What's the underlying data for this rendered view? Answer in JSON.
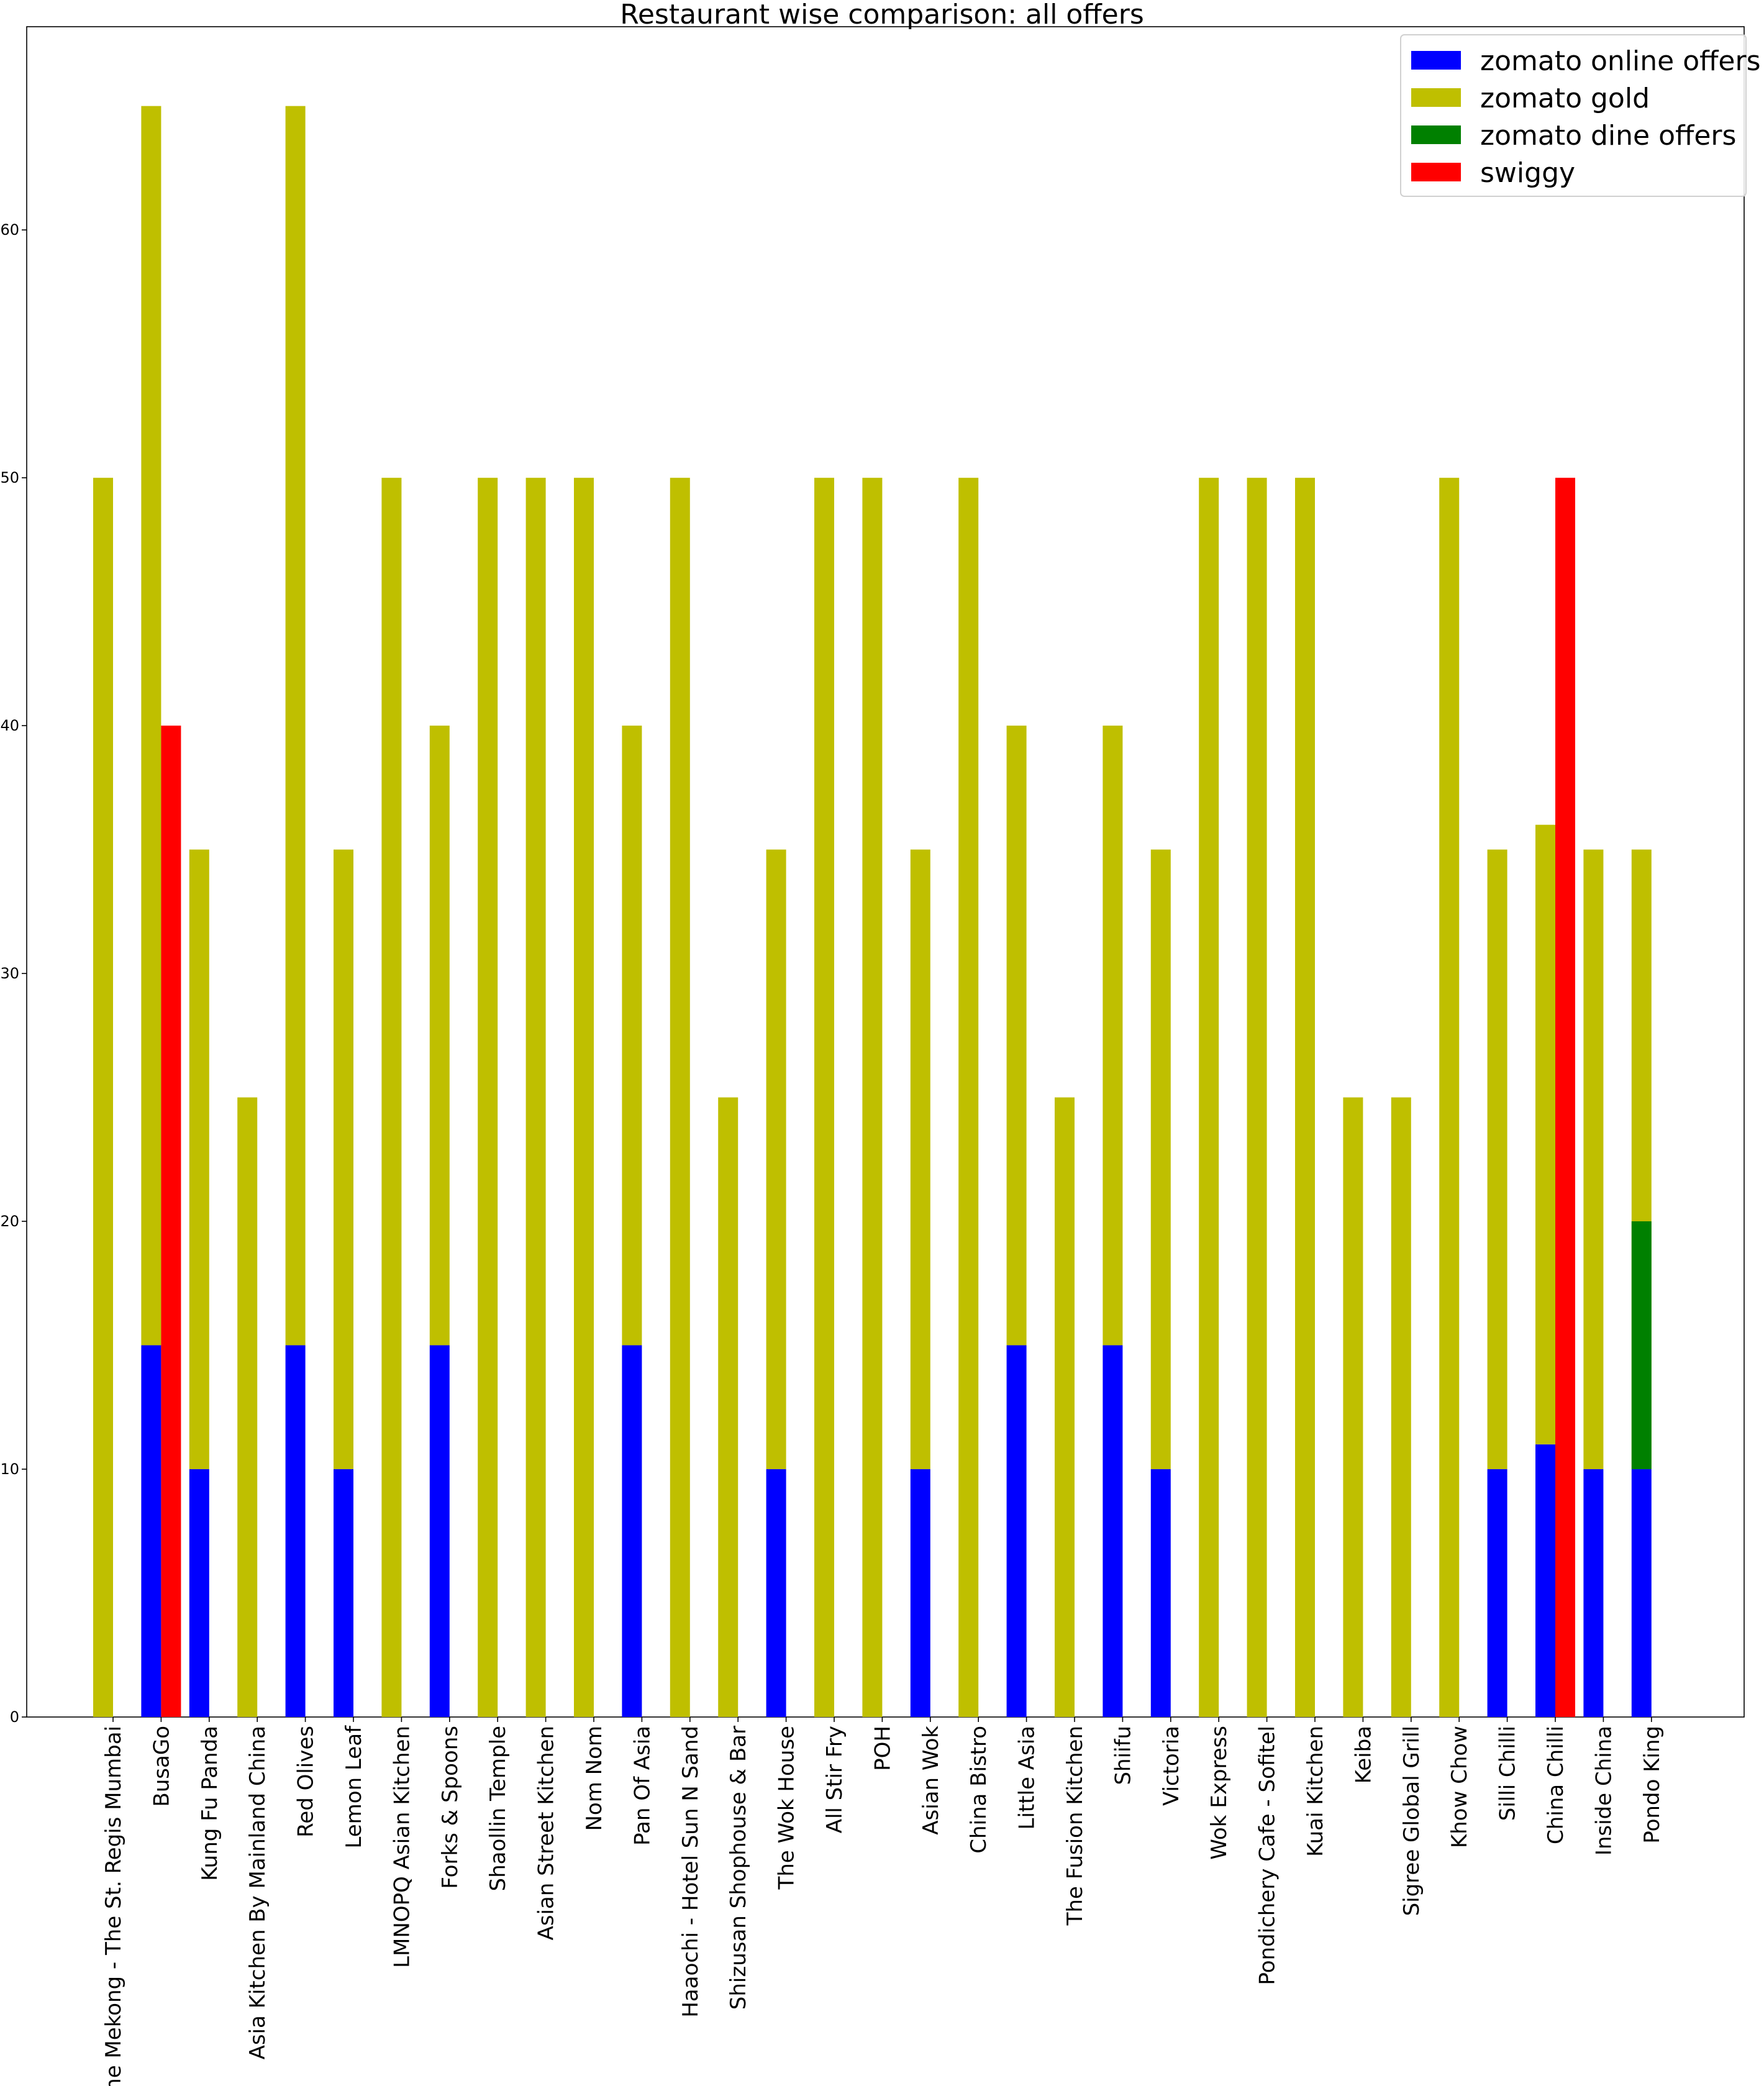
{
  "chart_data": {
    "type": "bar",
    "title": "Restaurant wise comparison: all offers",
    "xlabel": "",
    "ylabel": "",
    "ylim": [
      0,
      68.2
    ],
    "yticks": [
      0,
      10,
      20,
      30,
      40,
      50,
      60
    ],
    "grid": false,
    "legend_position": "top-right",
    "categories": [
      "By the Mekong - The St. Regis Mumbai",
      "BusaGo",
      "Kung Fu Panda",
      "Asia Kitchen By Mainland China",
      "Red Olives",
      "Lemon Leaf",
      "LMNOPQ Asian Kitchen",
      "Forks & Spoons",
      "Shaollin Temple",
      "Asian Street Kitchen",
      "Nom Nom",
      "Pan Of Asia",
      "Haaochi - Hotel Sun N Sand",
      "Shizusan Shophouse & Bar",
      "The Wok House",
      "All Stir Fry",
      "POH",
      "Asian Wok",
      "China Bistro",
      "Little Asia",
      "The Fusion Kitchen",
      "Shiifu",
      "Victoria",
      "Wok Express",
      "Pondichery Cafe - Sofitel",
      "Kuai Kitchen",
      "Keiba",
      "Sigree Global Grill",
      "Khow Chow",
      "Silli Chilli",
      "China Chilli",
      "Inside China",
      "Pondo King"
    ],
    "series": [
      {
        "name": "zomato online offers",
        "color": "#0000ff",
        "values": [
          0,
          15,
          10,
          0,
          15,
          10,
          0,
          15,
          0,
          0,
          0,
          15,
          0,
          0,
          10,
          0,
          0,
          10,
          0,
          15,
          0,
          15,
          10,
          0,
          0,
          0,
          0,
          0,
          0,
          10,
          11,
          10,
          10
        ]
      },
      {
        "name": "zomato gold",
        "color": "#bfbf00",
        "values": [
          50,
          50,
          25,
          25,
          50,
          25,
          50,
          25,
          50,
          50,
          50,
          25,
          50,
          25,
          25,
          50,
          50,
          25,
          50,
          25,
          25,
          25,
          25,
          50,
          50,
          50,
          25,
          25,
          50,
          25,
          25,
          25,
          25
        ]
      },
      {
        "name": "zomato dine offers",
        "color": "#008000",
        "values": [
          0,
          0,
          0,
          0,
          0,
          0,
          0,
          0,
          0,
          0,
          0,
          0,
          0,
          0,
          0,
          0,
          0,
          0,
          0,
          0,
          0,
          0,
          0,
          0,
          0,
          0,
          0,
          0,
          0,
          0,
          0,
          0,
          10
        ]
      },
      {
        "name": "swiggy",
        "color": "#ff0000",
        "values": [
          0,
          40,
          0,
          0,
          0,
          0,
          0,
          0,
          0,
          0,
          0,
          0,
          0,
          0,
          0,
          0,
          0,
          0,
          0,
          0,
          0,
          0,
          0,
          0,
          0,
          0,
          0,
          0,
          0,
          0,
          50,
          0,
          0
        ]
      }
    ]
  }
}
